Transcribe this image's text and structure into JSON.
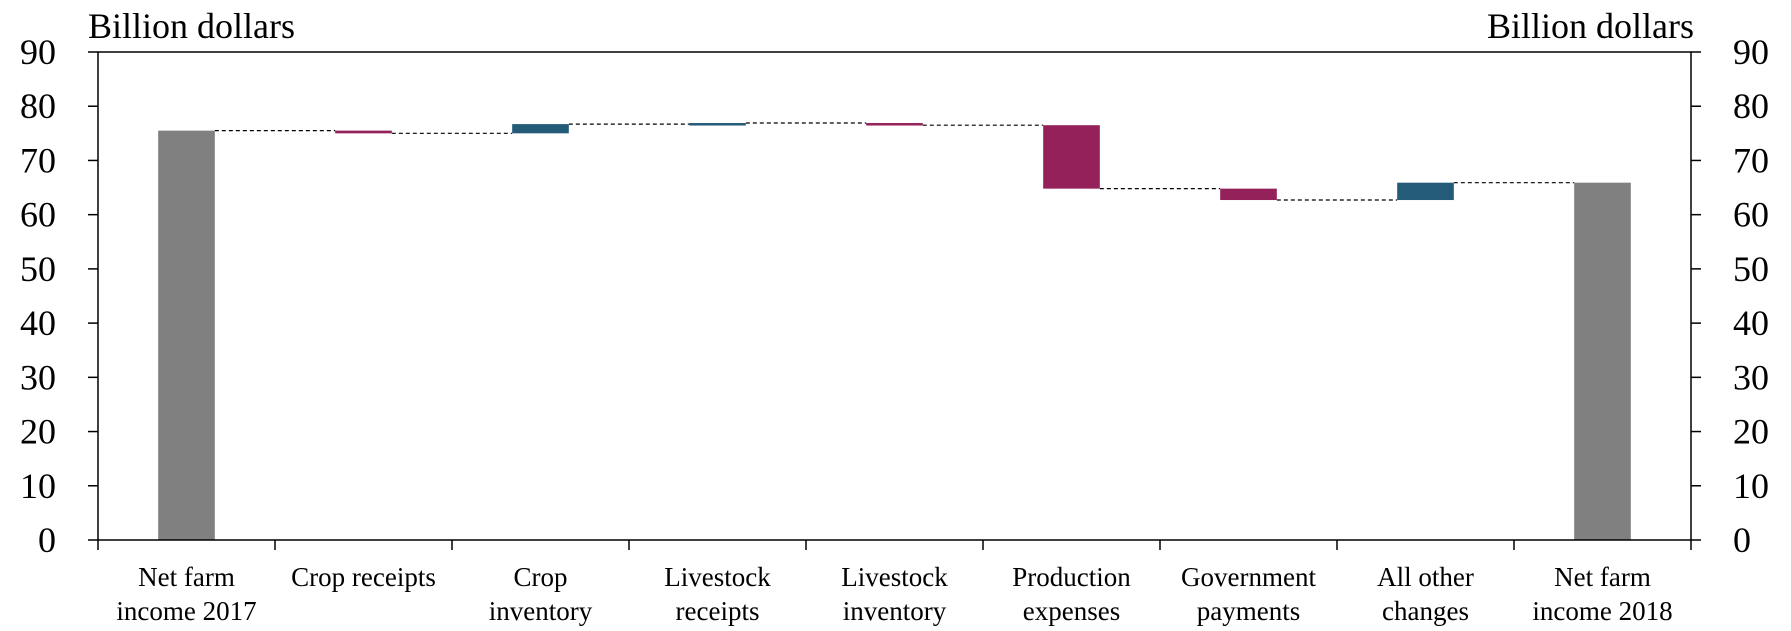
{
  "chart_data": {
    "type": "bar",
    "subtype": "waterfall",
    "left_axis_label": "Billion dollars",
    "right_axis_label": "Billion dollars",
    "ylim": [
      0,
      90
    ],
    "yticks": [
      0,
      10,
      20,
      30,
      40,
      50,
      60,
      70,
      80,
      90
    ],
    "grid": false,
    "categories": [
      [
        "Net farm",
        "income 2017"
      ],
      [
        "Crop receipts"
      ],
      [
        "Crop",
        "inventory"
      ],
      [
        "Livestock",
        "receipts"
      ],
      [
        "Livestock",
        "inventory"
      ],
      [
        "Production",
        "expenses"
      ],
      [
        "Government",
        "payments"
      ],
      [
        "All other",
        "changes"
      ],
      [
        "Net farm",
        "income 2018"
      ]
    ],
    "bars": [
      {
        "kind": "total",
        "start": 0,
        "end": 75.5
      },
      {
        "kind": "change",
        "start": 75.5,
        "end": 75.0
      },
      {
        "kind": "change",
        "start": 75.0,
        "end": 76.7
      },
      {
        "kind": "change",
        "start": 76.7,
        "end": 76.9
      },
      {
        "kind": "change",
        "start": 76.9,
        "end": 76.5
      },
      {
        "kind": "change",
        "start": 76.5,
        "end": 64.8
      },
      {
        "kind": "change",
        "start": 64.8,
        "end": 62.7
      },
      {
        "kind": "change",
        "start": 62.7,
        "end": 65.9
      },
      {
        "kind": "total",
        "start": 0,
        "end": 65.9
      }
    ],
    "colors": {
      "total": "#808080",
      "increase": "#245b78",
      "decrease": "#94215a"
    }
  }
}
